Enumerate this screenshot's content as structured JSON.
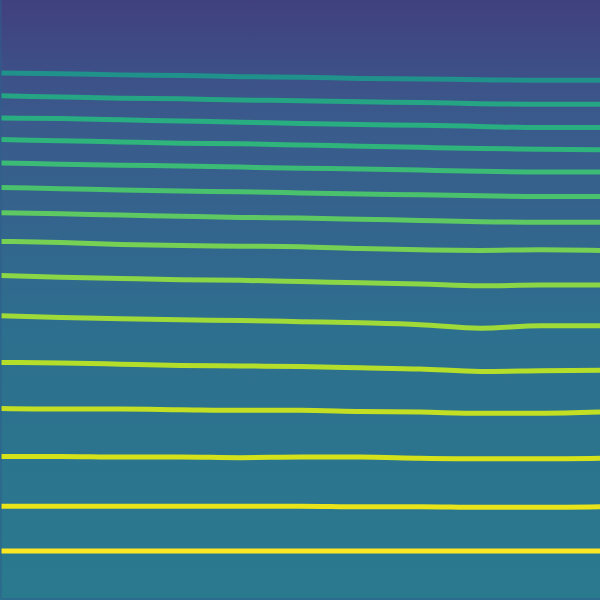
{
  "chart_data": {
    "type": "line",
    "x": [
      0,
      10,
      20,
      30,
      40,
      50,
      60,
      70,
      80,
      90,
      100
    ],
    "xlim": [
      0,
      100
    ],
    "ylim": [
      0,
      100
    ],
    "tick_labels": false,
    "grid": false,
    "series": [
      {
        "color": "#fde725",
        "values": [
          8.0,
          8.0,
          8.0,
          8.0,
          8.0,
          8.0,
          8.0,
          8.0,
          8.0,
          8.0,
          8.0
        ]
      },
      {
        "color": "#e8e419",
        "values": [
          15.5,
          15.5,
          15.5,
          15.5,
          15.5,
          15.5,
          15.4,
          15.4,
          15.3,
          15.3,
          15.4
        ]
      },
      {
        "color": "#d5e21a",
        "values": [
          23.8,
          23.8,
          23.7,
          23.7,
          23.6,
          23.7,
          23.7,
          23.5,
          23.4,
          23.4,
          23.5
        ]
      },
      {
        "color": "#c2df23",
        "values": [
          31.8,
          31.7,
          31.7,
          31.6,
          31.5,
          31.5,
          31.3,
          31.2,
          31.0,
          31.0,
          31.2
        ]
      },
      {
        "color": "#b5de2b",
        "values": [
          39.5,
          39.4,
          39.2,
          39.0,
          38.9,
          38.8,
          38.6,
          38.4,
          38.0,
          38.1,
          38.2
        ]
      },
      {
        "color": "#a0da39",
        "values": [
          47.3,
          47.0,
          46.8,
          46.6,
          46.5,
          46.3,
          46.1,
          45.8,
          45.2,
          45.6,
          45.6
        ]
      },
      {
        "color": "#8bd646",
        "values": [
          54.0,
          53.7,
          53.5,
          53.3,
          53.2,
          53.0,
          52.8,
          52.6,
          52.3,
          52.4,
          52.4
        ]
      },
      {
        "color": "#75d054",
        "values": [
          59.7,
          59.5,
          59.2,
          59.0,
          58.9,
          58.8,
          58.5,
          58.3,
          58.2,
          58.3,
          58.2
        ]
      },
      {
        "color": "#5ec962",
        "values": [
          64.5,
          64.3,
          64.1,
          63.9,
          63.7,
          63.6,
          63.4,
          63.2,
          63.0,
          62.9,
          62.9
        ]
      },
      {
        "color": "#4ac16d",
        "values": [
          68.7,
          68.5,
          68.3,
          68.1,
          68.0,
          67.8,
          67.6,
          67.5,
          67.3,
          67.2,
          67.2
        ]
      },
      {
        "color": "#3bbb75",
        "values": [
          72.8,
          72.6,
          72.4,
          72.3,
          72.1,
          71.9,
          71.8,
          71.6,
          71.4,
          71.3,
          71.3
        ]
      },
      {
        "color": "#2fb47c",
        "values": [
          76.7,
          76.5,
          76.3,
          76.1,
          76.0,
          75.8,
          75.6,
          75.4,
          75.2,
          75.1,
          75.0
        ]
      },
      {
        "color": "#28ae80",
        "values": [
          80.3,
          80.2,
          80.0,
          79.8,
          79.6,
          79.4,
          79.2,
          79.1,
          78.9,
          78.7,
          78.7
        ]
      },
      {
        "color": "#25a584",
        "values": [
          84.0,
          83.8,
          83.6,
          83.5,
          83.3,
          83.2,
          83.0,
          82.9,
          82.7,
          82.6,
          82.6
        ]
      },
      {
        "color": "#21918c",
        "values": [
          87.8,
          87.7,
          87.5,
          87.4,
          87.2,
          87.1,
          86.9,
          86.8,
          86.7,
          86.6,
          86.6
        ]
      }
    ]
  }
}
